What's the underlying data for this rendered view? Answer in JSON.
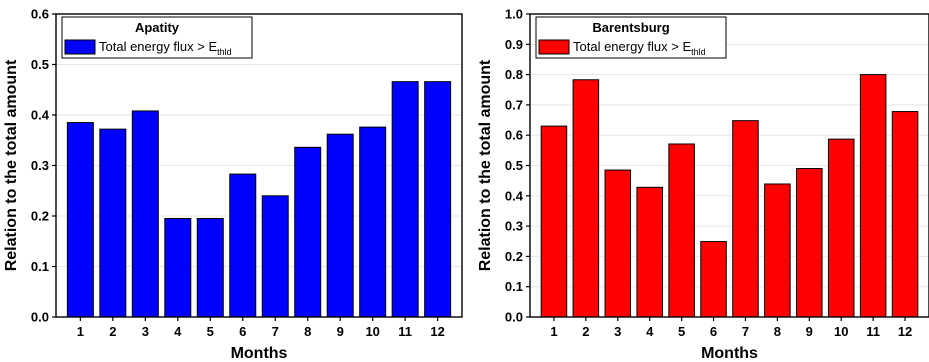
{
  "chart_data": [
    {
      "type": "bar",
      "categories": [
        "1",
        "2",
        "3",
        "4",
        "5",
        "6",
        "7",
        "8",
        "9",
        "10",
        "11",
        "12"
      ],
      "series": [
        {
          "name": "Total energy flux > E_thld",
          "label_main": "Total energy flux > E",
          "label_sub": "thld",
          "color": "#0000ff",
          "values": [
            0.385,
            0.372,
            0.408,
            0.195,
            0.195,
            0.283,
            0.24,
            0.336,
            0.362,
            0.376,
            0.466,
            0.466
          ]
        }
      ],
      "legend_title": "Apatity",
      "xlabel": "Months",
      "ylabel": "Relation to the total amount",
      "ylim": [
        0,
        0.6
      ],
      "yticks": [
        "0.0",
        "0.1",
        "0.2",
        "0.3",
        "0.4",
        "0.5",
        "0.6"
      ],
      "grid": true,
      "legend_position": "top-left"
    },
    {
      "type": "bar",
      "categories": [
        "1",
        "2",
        "3",
        "4",
        "5",
        "6",
        "7",
        "8",
        "9",
        "10",
        "11",
        "12"
      ],
      "series": [
        {
          "name": "Total energy flux > E_thld",
          "label_main": "Total energy flux > E",
          "label_sub": "thld",
          "color": "#ff0000",
          "values": [
            0.63,
            0.783,
            0.485,
            0.428,
            0.571,
            0.249,
            0.648,
            0.439,
            0.49,
            0.587,
            0.8,
            0.678
          ]
        }
      ],
      "legend_title": "Barentsburg",
      "xlabel": "Months",
      "ylabel": "Relation to the total amount",
      "ylim": [
        0,
        1.0
      ],
      "yticks": [
        "0.0",
        "0.1",
        "0.2",
        "0.3",
        "0.4",
        "0.5",
        "0.6",
        "0.7",
        "0.8",
        "0.9",
        "1.0"
      ],
      "grid": true,
      "legend_position": "top-left"
    }
  ]
}
